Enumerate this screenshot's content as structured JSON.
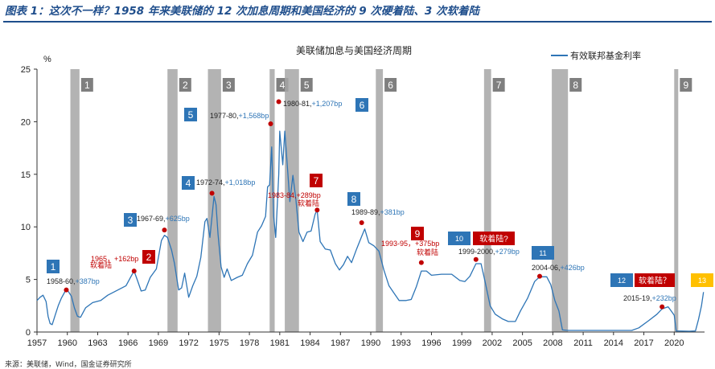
{
  "caption": "图表 1：这次不一样？1958 年来美联储的 12 次加息周期和美国经济的 9 次硬着陆、3 次软着陆",
  "source": "来源：美联储，Wind，国金证券研究所",
  "colors": {
    "line": "#2e75b6",
    "blue_badge": "#2e75b6",
    "red_badge": "#c00000",
    "orange_badge": "#ffc000",
    "recession_band": "#a6a6a6",
    "band_label": "#7f7f7f",
    "point": "#c00000",
    "red_text": "#c00000",
    "blue_text": "#2e75b6"
  },
  "chart_data": {
    "type": "line",
    "title": "美联储加息与美国经济周期",
    "ylabel": "%",
    "xlabel": "",
    "ylim": [
      0,
      25
    ],
    "xlim": [
      1957,
      2023
    ],
    "yticks": [
      0,
      5,
      10,
      15,
      20,
      25
    ],
    "xticks": [
      1957,
      1960,
      1963,
      1966,
      1969,
      1972,
      1975,
      1978,
      1981,
      1984,
      1987,
      1990,
      1993,
      1996,
      1999,
      2002,
      2005,
      2008,
      2011,
      2014,
      2017,
      2020
    ],
    "legend": {
      "label": "有效联邦基金利率",
      "position": "top-right"
    },
    "series": [
      {
        "name": "有效联邦基金利率",
        "points": [
          [
            1957.0,
            3.0
          ],
          [
            1957.3,
            3.3
          ],
          [
            1957.6,
            3.5
          ],
          [
            1957.9,
            2.9
          ],
          [
            1958.1,
            1.5
          ],
          [
            1958.3,
            0.8
          ],
          [
            1958.5,
            0.7
          ],
          [
            1958.8,
            1.6
          ],
          [
            1959.1,
            2.5
          ],
          [
            1959.4,
            3.2
          ],
          [
            1959.8,
            3.9
          ],
          [
            1960.0,
            4.0
          ],
          [
            1960.4,
            3.4
          ],
          [
            1960.7,
            2.3
          ],
          [
            1961.0,
            1.5
          ],
          [
            1961.3,
            1.4
          ],
          [
            1961.8,
            2.3
          ],
          [
            1962.5,
            2.8
          ],
          [
            1963.3,
            3.0
          ],
          [
            1964.0,
            3.5
          ],
          [
            1965.0,
            4.0
          ],
          [
            1965.8,
            4.4
          ],
          [
            1966.3,
            5.3
          ],
          [
            1966.6,
            5.8
          ],
          [
            1966.9,
            5.0
          ],
          [
            1967.3,
            3.9
          ],
          [
            1967.7,
            4.0
          ],
          [
            1968.2,
            5.2
          ],
          [
            1968.8,
            6.0
          ],
          [
            1969.3,
            8.7
          ],
          [
            1969.6,
            9.2
          ],
          [
            1969.9,
            9.0
          ],
          [
            1970.3,
            7.8
          ],
          [
            1970.6,
            6.5
          ],
          [
            1971.0,
            4.0
          ],
          [
            1971.3,
            4.2
          ],
          [
            1971.6,
            5.6
          ],
          [
            1972.0,
            3.3
          ],
          [
            1972.4,
            4.4
          ],
          [
            1972.8,
            5.3
          ],
          [
            1973.2,
            7.1
          ],
          [
            1973.6,
            10.5
          ],
          [
            1973.8,
            10.8
          ],
          [
            1974.1,
            9.0
          ],
          [
            1974.5,
            12.9
          ],
          [
            1974.7,
            12.1
          ],
          [
            1974.9,
            9.3
          ],
          [
            1975.2,
            6.2
          ],
          [
            1975.5,
            5.2
          ],
          [
            1975.8,
            6.0
          ],
          [
            1976.2,
            4.9
          ],
          [
            1976.8,
            5.2
          ],
          [
            1977.3,
            5.4
          ],
          [
            1977.8,
            6.5
          ],
          [
            1978.3,
            7.3
          ],
          [
            1978.8,
            9.5
          ],
          [
            1979.2,
            10.1
          ],
          [
            1979.6,
            11.0
          ],
          [
            1979.8,
            13.8
          ],
          [
            1980.0,
            14.0
          ],
          [
            1980.2,
            17.6
          ],
          [
            1980.4,
            11.0
          ],
          [
            1980.6,
            9.0
          ],
          [
            1980.9,
            15.0
          ],
          [
            1981.0,
            19.1
          ],
          [
            1981.3,
            15.9
          ],
          [
            1981.5,
            19.1
          ],
          [
            1981.8,
            15.1
          ],
          [
            1982.0,
            12.4
          ],
          [
            1982.3,
            14.9
          ],
          [
            1982.6,
            12.6
          ],
          [
            1982.9,
            9.5
          ],
          [
            1983.3,
            8.6
          ],
          [
            1983.7,
            9.5
          ],
          [
            1984.1,
            9.6
          ],
          [
            1984.5,
            11.2
          ],
          [
            1984.7,
            11.6
          ],
          [
            1985.0,
            8.6
          ],
          [
            1985.5,
            7.9
          ],
          [
            1986.0,
            7.8
          ],
          [
            1986.5,
            6.5
          ],
          [
            1986.9,
            5.9
          ],
          [
            1987.3,
            6.4
          ],
          [
            1987.7,
            7.2
          ],
          [
            1988.1,
            6.6
          ],
          [
            1988.6,
            7.9
          ],
          [
            1989.1,
            9.1
          ],
          [
            1989.4,
            9.8
          ],
          [
            1989.8,
            8.5
          ],
          [
            1990.3,
            8.2
          ],
          [
            1990.8,
            7.7
          ],
          [
            1991.3,
            5.9
          ],
          [
            1991.8,
            4.4
          ],
          [
            1992.3,
            3.7
          ],
          [
            1992.8,
            3.0
          ],
          [
            1993.5,
            3.0
          ],
          [
            1994.0,
            3.1
          ],
          [
            1994.5,
            4.3
          ],
          [
            1995.0,
            5.8
          ],
          [
            1995.5,
            5.8
          ],
          [
            1996.0,
            5.4
          ],
          [
            1997.0,
            5.5
          ],
          [
            1998.0,
            5.5
          ],
          [
            1998.8,
            4.9
          ],
          [
            1999.3,
            4.8
          ],
          [
            1999.8,
            5.3
          ],
          [
            2000.4,
            6.5
          ],
          [
            2000.9,
            6.5
          ],
          [
            2001.3,
            4.8
          ],
          [
            2001.8,
            2.5
          ],
          [
            2002.3,
            1.7
          ],
          [
            2003.0,
            1.25
          ],
          [
            2003.6,
            1.0
          ],
          [
            2004.3,
            1.0
          ],
          [
            2004.8,
            2.0
          ],
          [
            2005.5,
            3.2
          ],
          [
            2006.2,
            4.8
          ],
          [
            2006.7,
            5.25
          ],
          [
            2007.4,
            5.25
          ],
          [
            2007.8,
            4.5
          ],
          [
            2008.2,
            3.0
          ],
          [
            2008.6,
            2.0
          ],
          [
            2008.95,
            0.2
          ],
          [
            2009.5,
            0.15
          ],
          [
            2012.0,
            0.15
          ],
          [
            2015.8,
            0.15
          ],
          [
            2016.5,
            0.4
          ],
          [
            2017.5,
            1.1
          ],
          [
            2018.3,
            1.7
          ],
          [
            2018.8,
            2.2
          ],
          [
            2019.4,
            2.4
          ],
          [
            2019.7,
            2.0
          ],
          [
            2020.0,
            1.6
          ],
          [
            2020.2,
            0.1
          ],
          [
            2021.5,
            0.08
          ],
          [
            2022.1,
            0.1
          ],
          [
            2022.4,
            1.2
          ],
          [
            2022.7,
            2.5
          ],
          [
            2022.9,
            3.8
          ]
        ]
      }
    ],
    "recessions": [
      {
        "label": "1",
        "start": 1960.3,
        "end": 1961.2
      },
      {
        "label": "2",
        "start": 1969.9,
        "end": 1970.9
      },
      {
        "label": "3",
        "start": 1973.9,
        "end": 1975.2
      },
      {
        "label": "4",
        "start": 1980.0,
        "end": 1980.5
      },
      {
        "label": "5",
        "start": 1981.5,
        "end": 1982.9
      },
      {
        "label": "6",
        "start": 1990.5,
        "end": 1991.2
      },
      {
        "label": "7",
        "start": 2001.2,
        "end": 2001.9
      },
      {
        "label": "8",
        "start": 2007.9,
        "end": 2009.5
      },
      {
        "label": "9",
        "start": 2020.0,
        "end": 2020.4
      }
    ],
    "hike_cycles": [
      {
        "num": "1",
        "badge_color": "blue",
        "period": "1958-60",
        "bp": "+387bp",
        "label_sep": ",",
        "point": [
          1959.9,
          4.0
        ]
      },
      {
        "num": "2",
        "badge_color": "red",
        "period": "1965",
        "bp": "+162bp",
        "label_sep": "，",
        "note": "软着陆",
        "point": [
          1966.6,
          5.8
        ]
      },
      {
        "num": "3",
        "badge_color": "blue",
        "period": "1967-69",
        "bp": "+625bp",
        "label_sep": ",",
        "point": [
          1969.6,
          9.7
        ]
      },
      {
        "num": "4",
        "badge_color": "blue",
        "period": "1972-74",
        "bp": "+1,018bp",
        "label_sep": ",",
        "point": [
          1974.3,
          13.2
        ]
      },
      {
        "num": "5",
        "badge_color": "blue",
        "period": "1977-80",
        "bp": "+1,568bp",
        "label_sep": ",",
        "point": [
          1980.1,
          19.8
        ]
      },
      {
        "num": "6",
        "badge_color": "blue",
        "period": "1980-81",
        "bp": "+1,207bp",
        "label_sep": ",",
        "point": [
          1980.9,
          21.9
        ]
      },
      {
        "num": "7",
        "badge_color": "red",
        "period": "1983-84",
        "bp": "+289bp",
        "label_sep": ",",
        "note": "软着陆",
        "point": [
          1984.7,
          11.6
        ]
      },
      {
        "num": "8",
        "badge_color": "blue",
        "period": "1989-89",
        "bp": "+381bp",
        "label_sep": ",",
        "point": [
          1989.1,
          10.4
        ]
      },
      {
        "num": "9",
        "badge_color": "red",
        "period": "1993-95",
        "bp": "+375bp",
        "label_sep": "，",
        "note": "软着陆",
        "point": [
          1995.0,
          6.6
        ]
      },
      {
        "num": "10",
        "badge_color": "blue",
        "period": "1999-2000",
        "bp": "+279bp",
        "label_sep": ",",
        "point": [
          2000.4,
          6.9
        ],
        "question": "软着陆?"
      },
      {
        "num": "11",
        "badge_color": "blue",
        "period": "2004-06",
        "bp": "+426bp",
        "label_sep": ",",
        "point": [
          2006.7,
          5.3
        ]
      },
      {
        "num": "12",
        "badge_color": "blue",
        "period": "2015-19",
        "bp": "+232bp",
        "label_sep": ",",
        "point": [
          2018.8,
          2.4
        ],
        "question": "软着陆？"
      },
      {
        "num": "13",
        "badge_color": "orange"
      }
    ]
  }
}
